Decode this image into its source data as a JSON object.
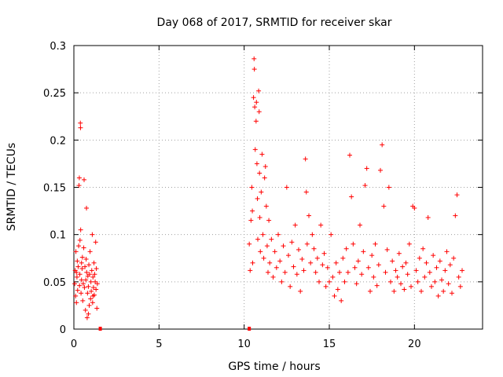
{
  "chart_data": {
    "type": "scatter",
    "title": "Day 068 of 2017, SRMTID for receiver skar",
    "xlabel": "GPS time / hours",
    "ylabel": "SRMTID / TECUs",
    "xlim": [
      0,
      24
    ],
    "ylim": [
      0,
      0.3
    ],
    "xticks": [
      0,
      5,
      10,
      15,
      20
    ],
    "yticks": [
      0,
      0.05,
      0.1,
      0.15,
      0.2,
      0.25,
      0.3
    ],
    "grid": true,
    "marker": "+",
    "color": "#ff0000",
    "series": [
      {
        "name": "SRMTID",
        "points": [
          [
            0.05,
            0.048
          ],
          [
            0.08,
            0.062
          ],
          [
            0.1,
            0.035
          ],
          [
            0.12,
            0.082
          ],
          [
            0.15,
            0.028
          ],
          [
            0.18,
            0.055
          ],
          [
            0.2,
            0.072
          ],
          [
            0.22,
            0.041
          ],
          [
            0.25,
            0.066
          ],
          [
            0.28,
            0.088
          ],
          [
            0.3,
            0.152
          ],
          [
            0.32,
            0.16
          ],
          [
            0.33,
            0.046
          ],
          [
            0.35,
            0.058
          ],
          [
            0.36,
            0.094
          ],
          [
            0.38,
            0.218
          ],
          [
            0.39,
            0.213
          ],
          [
            0.4,
            0.105
          ],
          [
            0.42,
            0.038
          ],
          [
            0.45,
            0.052
          ],
          [
            0.48,
            0.064
          ],
          [
            0.5,
            0.076
          ],
          [
            0.52,
            0.03
          ],
          [
            0.55,
            0.048
          ],
          [
            0.58,
            0.086
          ],
          [
            0.6,
            0.158
          ],
          [
            0.62,
            0.044
          ],
          [
            0.65,
            0.066
          ],
          [
            0.68,
            0.02
          ],
          [
            0.7,
            0.052
          ],
          [
            0.72,
            0.074
          ],
          [
            0.74,
            0.128
          ],
          [
            0.75,
            0.06
          ],
          [
            0.78,
            0.012
          ],
          [
            0.8,
            0.038
          ],
          [
            0.82,
            0.056
          ],
          [
            0.85,
            0.045
          ],
          [
            0.88,
            0.068
          ],
          [
            0.9,
            0.025
          ],
          [
            0.92,
            0.058
          ],
          [
            0.95,
            0.082
          ],
          [
            0.98,
            0.032
          ],
          [
            1.0,
            0.05
          ],
          [
            1.02,
            0.04
          ],
          [
            1.05,
            0.062
          ],
          [
            1.08,
            0.1
          ],
          [
            1.1,
            0.028
          ],
          [
            1.12,
            0.055
          ],
          [
            1.15,
            0.044
          ],
          [
            1.18,
            0.07
          ],
          [
            1.2,
            0.036
          ],
          [
            1.22,
            0.058
          ],
          [
            1.25,
            0.05
          ],
          [
            1.28,
            0.092
          ],
          [
            1.3,
            0.042
          ],
          [
            1.32,
            0.064
          ],
          [
            1.35,
            0.022
          ],
          [
            1.38,
            0.048
          ],
          [
            0.15,
            0.06
          ],
          [
            0.45,
            0.07
          ],
          [
            0.85,
            0.016
          ],
          [
            1.12,
            0.035
          ],
          [
            10.3,
            0.09
          ],
          [
            10.35,
            0.062
          ],
          [
            10.4,
            0.115
          ],
          [
            10.45,
            0.15
          ],
          [
            10.48,
            0.125
          ],
          [
            10.5,
            0.07
          ],
          [
            10.55,
            0.245
          ],
          [
            10.58,
            0.286
          ],
          [
            10.6,
            0.275
          ],
          [
            10.62,
            0.235
          ],
          [
            10.65,
            0.19
          ],
          [
            10.7,
            0.22
          ],
          [
            10.72,
            0.24
          ],
          [
            10.75,
            0.175
          ],
          [
            10.78,
            0.138
          ],
          [
            10.8,
            0.095
          ],
          [
            10.85,
            0.252
          ],
          [
            10.88,
            0.23
          ],
          [
            10.9,
            0.165
          ],
          [
            10.92,
            0.118
          ],
          [
            10.95,
            0.082
          ],
          [
            11.0,
            0.145
          ],
          [
            11.05,
            0.185
          ],
          [
            11.1,
            0.1
          ],
          [
            11.15,
            0.075
          ],
          [
            11.2,
            0.16
          ],
          [
            11.25,
            0.172
          ],
          [
            11.3,
            0.13
          ],
          [
            11.35,
            0.088
          ],
          [
            11.4,
            0.06
          ],
          [
            11.45,
            0.115
          ],
          [
            11.5,
            0.07
          ],
          [
            11.6,
            0.095
          ],
          [
            11.7,
            0.055
          ],
          [
            11.8,
            0.082
          ],
          [
            11.9,
            0.065
          ],
          [
            12.0,
            0.1
          ],
          [
            12.1,
            0.072
          ],
          [
            12.2,
            0.05
          ],
          [
            12.3,
            0.088
          ],
          [
            12.4,
            0.06
          ],
          [
            12.5,
            0.15
          ],
          [
            12.6,
            0.078
          ],
          [
            12.7,
            0.045
          ],
          [
            12.8,
            0.092
          ],
          [
            12.9,
            0.066
          ],
          [
            13.0,
            0.11
          ],
          [
            13.1,
            0.058
          ],
          [
            13.2,
            0.084
          ],
          [
            13.3,
            0.04
          ],
          [
            13.4,
            0.074
          ],
          [
            13.5,
            0.062
          ],
          [
            13.6,
            0.18
          ],
          [
            13.65,
            0.145
          ],
          [
            13.7,
            0.09
          ],
          [
            13.8,
            0.12
          ],
          [
            13.9,
            0.07
          ],
          [
            14.0,
            0.1
          ],
          [
            14.1,
            0.085
          ],
          [
            14.2,
            0.06
          ],
          [
            14.3,
            0.075
          ],
          [
            14.4,
            0.05
          ],
          [
            14.5,
            0.11
          ],
          [
            14.6,
            0.068
          ],
          [
            14.7,
            0.08
          ],
          [
            14.8,
            0.045
          ],
          [
            14.9,
            0.065
          ],
          [
            15.0,
            0.05
          ],
          [
            15.1,
            0.1
          ],
          [
            15.2,
            0.055
          ],
          [
            15.3,
            0.035
          ],
          [
            15.4,
            0.07
          ],
          [
            15.5,
            0.042
          ],
          [
            15.6,
            0.06
          ],
          [
            15.7,
            0.03
          ],
          [
            15.8,
            0.075
          ],
          [
            15.9,
            0.05
          ],
          [
            16.0,
            0.085
          ],
          [
            16.1,
            0.06
          ],
          [
            16.2,
            0.184
          ],
          [
            16.3,
            0.14
          ],
          [
            16.4,
            0.09
          ],
          [
            16.5,
            0.065
          ],
          [
            16.6,
            0.048
          ],
          [
            16.7,
            0.072
          ],
          [
            16.8,
            0.11
          ],
          [
            16.9,
            0.058
          ],
          [
            17.0,
            0.082
          ],
          [
            17.1,
            0.152
          ],
          [
            17.2,
            0.17
          ],
          [
            17.3,
            0.065
          ],
          [
            17.4,
            0.04
          ],
          [
            17.5,
            0.078
          ],
          [
            17.6,
            0.055
          ],
          [
            17.7,
            0.09
          ],
          [
            17.8,
            0.046
          ],
          [
            17.9,
            0.068
          ],
          [
            18.0,
            0.168
          ],
          [
            18.1,
            0.195
          ],
          [
            18.2,
            0.13
          ],
          [
            18.3,
            0.06
          ],
          [
            18.4,
            0.084
          ],
          [
            18.5,
            0.15
          ],
          [
            18.6,
            0.05
          ],
          [
            18.7,
            0.072
          ],
          [
            18.8,
            0.04
          ],
          [
            18.9,
            0.062
          ],
          [
            19.0,
            0.055
          ],
          [
            19.1,
            0.08
          ],
          [
            19.2,
            0.048
          ],
          [
            19.3,
            0.066
          ],
          [
            19.4,
            0.042
          ],
          [
            19.5,
            0.07
          ],
          [
            19.6,
            0.058
          ],
          [
            19.7,
            0.09
          ],
          [
            19.8,
            0.045
          ],
          [
            19.9,
            0.13
          ],
          [
            20.0,
            0.128
          ],
          [
            20.1,
            0.062
          ],
          [
            20.2,
            0.05
          ],
          [
            20.3,
            0.075
          ],
          [
            20.4,
            0.04
          ],
          [
            20.5,
            0.085
          ],
          [
            20.6,
            0.055
          ],
          [
            20.7,
            0.07
          ],
          [
            20.8,
            0.118
          ],
          [
            20.9,
            0.06
          ],
          [
            21.0,
            0.045
          ],
          [
            21.1,
            0.078
          ],
          [
            21.2,
            0.05
          ],
          [
            21.3,
            0.065
          ],
          [
            21.4,
            0.035
          ],
          [
            21.5,
            0.072
          ],
          [
            21.6,
            0.052
          ],
          [
            21.7,
            0.04
          ],
          [
            21.8,
            0.062
          ],
          [
            21.9,
            0.082
          ],
          [
            22.0,
            0.048
          ],
          [
            22.1,
            0.068
          ],
          [
            22.2,
            0.038
          ],
          [
            22.3,
            0.075
          ],
          [
            22.4,
            0.12
          ],
          [
            22.5,
            0.142
          ],
          [
            22.6,
            0.055
          ],
          [
            22.7,
            0.045
          ],
          [
            22.8,
            0.062
          ]
        ]
      }
    ],
    "edge_markers_x": [
      1.55,
      10.3
    ]
  }
}
